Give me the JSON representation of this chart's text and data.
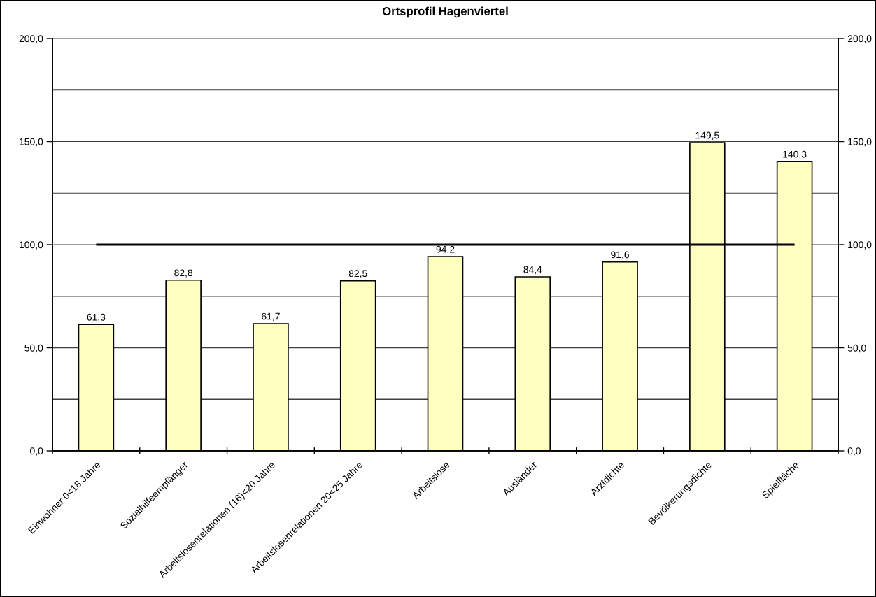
{
  "chart_data": {
    "type": "bar",
    "title": "Ortsprofil Hagenviertel",
    "categories": [
      "Einwohner 0<18 Jahre",
      "Sozialhilfeempfänger",
      "Arbeitslosenrelationen (16)<20 Jahre",
      "Arbeitslosenrelationen 20<25 Jahre",
      "Arbeitslose",
      "Ausländer",
      "Arztdichte",
      "Bevölkerungsdichte",
      "Spielfläche"
    ],
    "series": [
      {
        "color": "#ffffc0",
        "values": [
          61.3,
          82.8,
          61.7,
          82.5,
          94.2,
          84.4,
          91.6,
          149.5,
          140.3
        ],
        "value_labels": [
          "61,3",
          "82,8",
          "61,7",
          "82,5",
          "94,2",
          "84,4",
          "91,6",
          "149,5",
          "140,3"
        ]
      },
      {
        "type": "line",
        "color": "#000000",
        "values": [
          100,
          100,
          100,
          100,
          100,
          100,
          100,
          100,
          100
        ]
      }
    ],
    "ylim": [
      0,
      200
    ],
    "yticks": [
      {
        "value": 0,
        "label": "0,0"
      },
      {
        "value": 25,
        "label": null
      },
      {
        "value": 50,
        "label": "50,0"
      },
      {
        "value": 75,
        "label": null
      },
      {
        "value": 100,
        "label": "100,0"
      },
      {
        "value": 125,
        "label": null
      },
      {
        "value": 150,
        "label": "150,0"
      },
      {
        "value": 175,
        "label": null
      },
      {
        "value": 200,
        "label": "200,0"
      }
    ],
    "y2lim": [
      0,
      200
    ],
    "y2ticks": [
      {
        "value": 0,
        "label": "0,0"
      },
      {
        "value": 50,
        "label": "50,0"
      },
      {
        "value": 100,
        "label": "100,0"
      },
      {
        "value": 150,
        "label": "150,0"
      },
      {
        "value": 200,
        "label": "200,0"
      }
    ],
    "grid": "y"
  }
}
